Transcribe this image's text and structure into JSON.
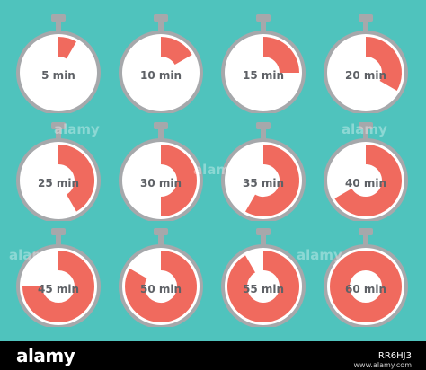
{
  "colors": {
    "background": "#4fc3bd",
    "face": "#ffffff",
    "rim": "#a6a8ab",
    "progress": "#f06a5e",
    "label": "#5e6166"
  },
  "timers": [
    {
      "label": "5 min",
      "minutes": 5
    },
    {
      "label": "10 min",
      "minutes": 10
    },
    {
      "label": "15 min",
      "minutes": 15
    },
    {
      "label": "20 min",
      "minutes": 20
    },
    {
      "label": "25 min",
      "minutes": 25
    },
    {
      "label": "30 min",
      "minutes": 30
    },
    {
      "label": "35 min",
      "minutes": 35
    },
    {
      "label": "40 min",
      "minutes": 40
    },
    {
      "label": "45 min",
      "minutes": 45
    },
    {
      "label": "50 min",
      "minutes": 50
    },
    {
      "label": "55 min",
      "minutes": 55
    },
    {
      "label": "60 min",
      "minutes": 60
    }
  ],
  "watermark": "alamy",
  "footer": {
    "logo": "alamy",
    "image_id": "RR6HJ3",
    "image_id_small": "www.alamy.com"
  }
}
